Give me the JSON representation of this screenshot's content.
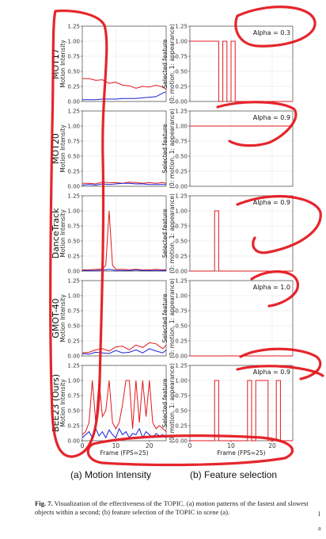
{
  "rows": [
    {
      "scene": "MOT17",
      "alpha": "Alpha = 0.3"
    },
    {
      "scene": "MOT20",
      "alpha": "Alpha = 0.9"
    },
    {
      "scene": "DanceTrack",
      "alpha": "Alpha = 0.9"
    },
    {
      "scene": "GMOT-40",
      "alpha": "Alpha = 1.0"
    },
    {
      "scene": "BEE23 (Ours)",
      "alpha": "Alpha = 0.9"
    }
  ],
  "y_ticks": [
    "0.00",
    "0.25",
    "0.50",
    "0.75",
    "1.00",
    "1.25"
  ],
  "x_ticks": [
    "0",
    "10",
    "20"
  ],
  "xlabel": "Frame (FPS=25)",
  "ylabel_left": "Motion Intensity",
  "ylabel_right_1": "Selected feature",
  "ylabel_right_2": "(0: motion, 1: appearance)",
  "sublabels": {
    "a": "(a) Motion Intensity",
    "b": "(b) Feature selection"
  },
  "caption": {
    "label": "Fig. 7.",
    "text": " Visualization of the effectiveness of the TOPIC. (a) motion patterns of the fastest and slowest objects within a second; (b) feature selection of the TOPIC in scene (a)."
  },
  "edge_text": [
    "I",
    "a"
  ],
  "colors": {
    "fast": "#e0191c",
    "slow": "#1a22d6",
    "feature": "#e0191c",
    "annotation": "#e3141b",
    "grid": "#e6e6e6",
    "axis": "#555555"
  },
  "chart_data": [
    {
      "type": "line",
      "panel": "MOT17 motion intensity",
      "xlim": [
        0,
        25
      ],
      "ylim": [
        0,
        1.25
      ],
      "x": [
        0,
        2,
        4,
        6,
        8,
        10,
        12,
        14,
        16,
        18,
        20,
        22,
        24,
        25
      ],
      "series": [
        {
          "values": [
            0.38,
            0.38,
            0.35,
            0.36,
            0.3,
            0.32,
            0.27,
            0.26,
            0.22,
            0.25,
            0.24,
            0.27,
            0.24,
            0.2
          ],
          "color": "#e0191c"
        },
        {
          "values": [
            0.03,
            0.03,
            0.03,
            0.04,
            0.04,
            0.04,
            0.05,
            0.05,
            0.05,
            0.06,
            0.07,
            0.08,
            0.14,
            0.16
          ],
          "color": "#1a22d6"
        }
      ]
    },
    {
      "type": "line",
      "panel": "MOT20 motion intensity",
      "xlim": [
        0,
        25
      ],
      "ylim": [
        0,
        1.25
      ],
      "x": [
        0,
        2,
        4,
        6,
        8,
        10,
        12,
        14,
        16,
        18,
        20,
        22,
        24,
        25
      ],
      "series": [
        {
          "values": [
            0.05,
            0.05,
            0.04,
            0.07,
            0.06,
            0.06,
            0.05,
            0.07,
            0.06,
            0.05,
            0.06,
            0.05,
            0.06,
            0.05
          ],
          "color": "#e0191c"
        },
        {
          "values": [
            0.02,
            0.03,
            0.02,
            0.04,
            0.03,
            0.04,
            0.05,
            0.05,
            0.04,
            0.04,
            0.03,
            0.03,
            0.03,
            0.03
          ],
          "color": "#1a22d6"
        }
      ]
    },
    {
      "type": "line",
      "panel": "DanceTrack motion intensity",
      "xlim": [
        0,
        25
      ],
      "ylim": [
        0,
        1.25
      ],
      "x": [
        0,
        2,
        4,
        6,
        7,
        8,
        9,
        10,
        12,
        14,
        16,
        18,
        20,
        22,
        24,
        25
      ],
      "series": [
        {
          "values": [
            0.02,
            0.02,
            0.03,
            0.03,
            0.1,
            1.0,
            0.1,
            0.03,
            0.03,
            0.02,
            0.03,
            0.02,
            0.02,
            0.03,
            0.02,
            0.02
          ],
          "color": "#e0191c"
        },
        {
          "values": [
            0.01,
            0.01,
            0.01,
            0.02,
            0.02,
            0.03,
            0.02,
            0.01,
            0.01,
            0.01,
            0.02,
            0.01,
            0.01,
            0.01,
            0.01,
            0.01
          ],
          "color": "#1a22d6"
        }
      ]
    },
    {
      "type": "line",
      "panel": "GMOT-40 motion intensity",
      "xlim": [
        0,
        25
      ],
      "ylim": [
        0,
        1.25
      ],
      "x": [
        0,
        2,
        4,
        6,
        8,
        10,
        12,
        14,
        16,
        18,
        20,
        22,
        24,
        25
      ],
      "series": [
        {
          "values": [
            0.05,
            0.06,
            0.1,
            0.12,
            0.08,
            0.15,
            0.16,
            0.1,
            0.18,
            0.14,
            0.22,
            0.2,
            0.12,
            0.18
          ],
          "color": "#e0191c"
        },
        {
          "values": [
            0.04,
            0.03,
            0.06,
            0.05,
            0.04,
            0.09,
            0.05,
            0.06,
            0.1,
            0.05,
            0.12,
            0.08,
            0.05,
            0.1
          ],
          "color": "#1a22d6"
        }
      ]
    },
    {
      "type": "line",
      "panel": "BEE23 motion intensity",
      "xlim": [
        0,
        25
      ],
      "ylim": [
        0,
        1.25
      ],
      "x": [
        0,
        1,
        2,
        3,
        4,
        5,
        6,
        7,
        8,
        9,
        10,
        11,
        12,
        13,
        14,
        15,
        16,
        17,
        18,
        19,
        20,
        21,
        22,
        23,
        24,
        25
      ],
      "series": [
        {
          "values": [
            0.1,
            0.15,
            0.3,
            1.0,
            0.3,
            1.0,
            0.4,
            0.5,
            1.0,
            0.3,
            0.2,
            0.3,
            0.6,
            1.0,
            1.0,
            0.2,
            1.0,
            0.3,
            1.0,
            0.4,
            1.0,
            0.3,
            0.2,
            0.25,
            0.2,
            0.15
          ],
          "color": "#e0191c"
        },
        {
          "values": [
            0.05,
            0.1,
            0.15,
            0.05,
            0.2,
            0.08,
            0.15,
            0.05,
            0.18,
            0.1,
            0.05,
            0.2,
            0.1,
            0.15,
            0.05,
            0.12,
            0.1,
            0.2,
            0.05,
            0.15,
            0.1,
            0.05,
            0.12,
            0.08,
            0.1,
            0.05
          ],
          "color": "#1a22d6"
        }
      ]
    },
    {
      "type": "line",
      "panel": "MOT17 feature selection",
      "xlim": [
        0,
        25
      ],
      "ylim": [
        0,
        1.25
      ],
      "x": [
        0,
        7,
        7,
        8,
        8,
        9,
        9,
        10,
        10,
        11,
        11,
        25
      ],
      "series": [
        {
          "values": [
            1,
            1,
            0,
            0,
            1,
            1,
            0,
            0,
            1,
            1,
            0,
            0
          ],
          "color": "#e0191c"
        }
      ]
    },
    {
      "type": "line",
      "panel": "MOT20 feature selection",
      "xlim": [
        0,
        25
      ],
      "ylim": [
        0,
        1.25
      ],
      "x": [
        0,
        25
      ],
      "series": [
        {
          "values": [
            1,
            1
          ],
          "color": "#e0191c"
        }
      ]
    },
    {
      "type": "line",
      "panel": "DanceTrack feature selection",
      "xlim": [
        0,
        25
      ],
      "ylim": [
        0,
        1.25
      ],
      "x": [
        0,
        6,
        6,
        7,
        7,
        25
      ],
      "series": [
        {
          "values": [
            0,
            0,
            1,
            1,
            0,
            0
          ],
          "color": "#e0191c"
        }
      ]
    },
    {
      "type": "line",
      "panel": "GMOT-40 feature selection",
      "xlim": [
        0,
        25
      ],
      "ylim": [
        0,
        1.25
      ],
      "x": [
        0,
        25
      ],
      "series": [
        {
          "values": [
            0,
            0
          ],
          "color": "#e0191c"
        }
      ]
    },
    {
      "type": "line",
      "panel": "BEE23 feature selection",
      "xlim": [
        0,
        25
      ],
      "ylim": [
        0,
        1.25
      ],
      "x": [
        0,
        6,
        6,
        7,
        7,
        14,
        14,
        15,
        15,
        16,
        16,
        19,
        19,
        21,
        21,
        22,
        22,
        25
      ],
      "series": [
        {
          "values": [
            0,
            0,
            1,
            1,
            0,
            0,
            1,
            1,
            0,
            0,
            1,
            1,
            0,
            0,
            1,
            1,
            0,
            0
          ],
          "color": "#e0191c"
        }
      ]
    }
  ]
}
